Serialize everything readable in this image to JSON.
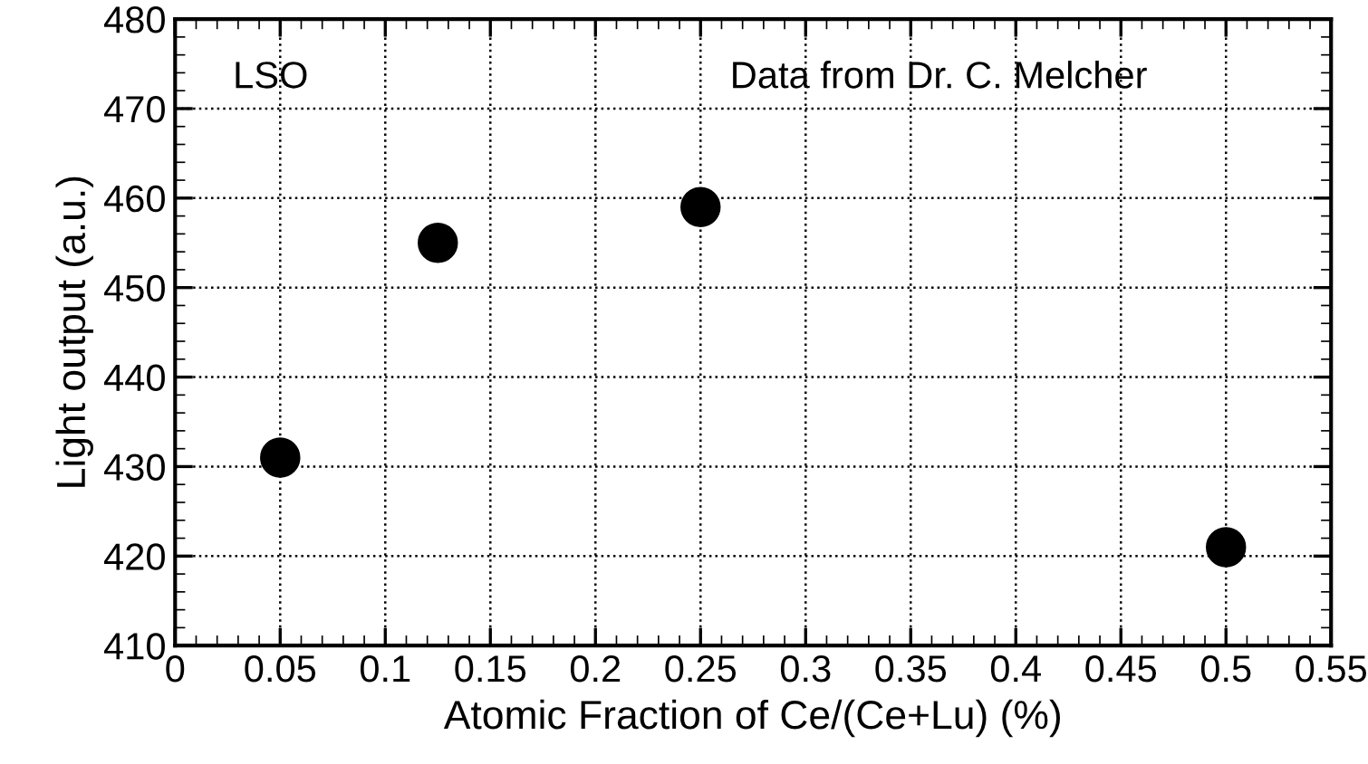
{
  "chart_data": {
    "type": "scatter",
    "xlabel": "Atomic Fraction of Ce/(Ce+Lu) (%)",
    "ylabel": "Light output (a.u.)",
    "x": [
      0.05,
      0.125,
      0.25,
      0.5
    ],
    "values": [
      431,
      455,
      459,
      421
    ],
    "color": "#000000",
    "marker": "circle",
    "xlim": [
      0,
      0.55
    ],
    "xticks": [
      0,
      0.05,
      0.1,
      0.15,
      0.2,
      0.25,
      0.3,
      0.35,
      0.4,
      0.45,
      0.5,
      0.55
    ],
    "ylim": [
      410,
      480
    ],
    "yticks": [
      410,
      420,
      430,
      440,
      450,
      460,
      470,
      480
    ],
    "grid": true,
    "annotations": [
      "LSO",
      "Data from Dr. C. Melcher"
    ]
  }
}
